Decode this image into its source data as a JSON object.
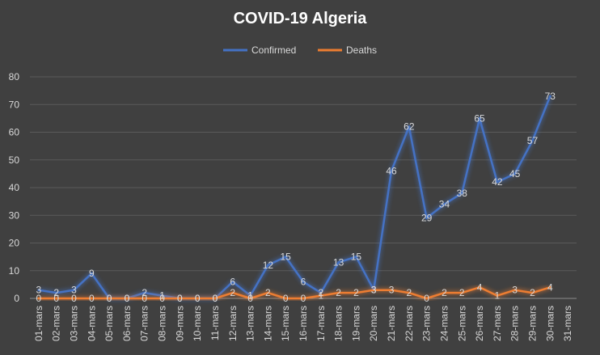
{
  "chart_data": {
    "type": "line",
    "title": "COVID-19 Algeria",
    "xlabel": "",
    "ylabel": "",
    "ylim": [
      0,
      80
    ],
    "yticks": [
      0,
      10,
      20,
      30,
      40,
      50,
      60,
      70,
      80
    ],
    "grid": true,
    "legend": "top",
    "categories": [
      "01-mars",
      "02-mars",
      "03-mars",
      "04-mars",
      "05-mars",
      "06-mars",
      "07-mars",
      "08-mars",
      "09-mars",
      "10-mars",
      "11-mars",
      "12-mars",
      "13-mars",
      "14-mars",
      "15-mars",
      "16-mars",
      "17-mars",
      "18-mars",
      "19-mars",
      "20-mars",
      "21-mars",
      "22-mars",
      "23-mars",
      "24-mars",
      "25-mars",
      "26-mars",
      "27-mars",
      "28-mars",
      "29-mars",
      "30-mars",
      "31-mars"
    ],
    "series": [
      {
        "name": "Confirmed",
        "color": "#4472C4",
        "values": [
          3,
          2,
          3,
          9,
          0,
          0,
          2,
          1,
          0,
          0,
          0,
          6,
          1,
          12,
          15,
          6,
          2,
          13,
          15,
          3,
          46,
          62,
          29,
          34,
          38,
          65,
          42,
          45,
          57,
          73,
          null
        ]
      },
      {
        "name": "Deaths",
        "color": "#ED7D31",
        "values": [
          0,
          0,
          0,
          0,
          0,
          0,
          0,
          0,
          0,
          0,
          0,
          2,
          0,
          2,
          0,
          0,
          1,
          2,
          2,
          3,
          3,
          2,
          0,
          2,
          2,
          4,
          1,
          3,
          2,
          4,
          null
        ]
      }
    ]
  }
}
